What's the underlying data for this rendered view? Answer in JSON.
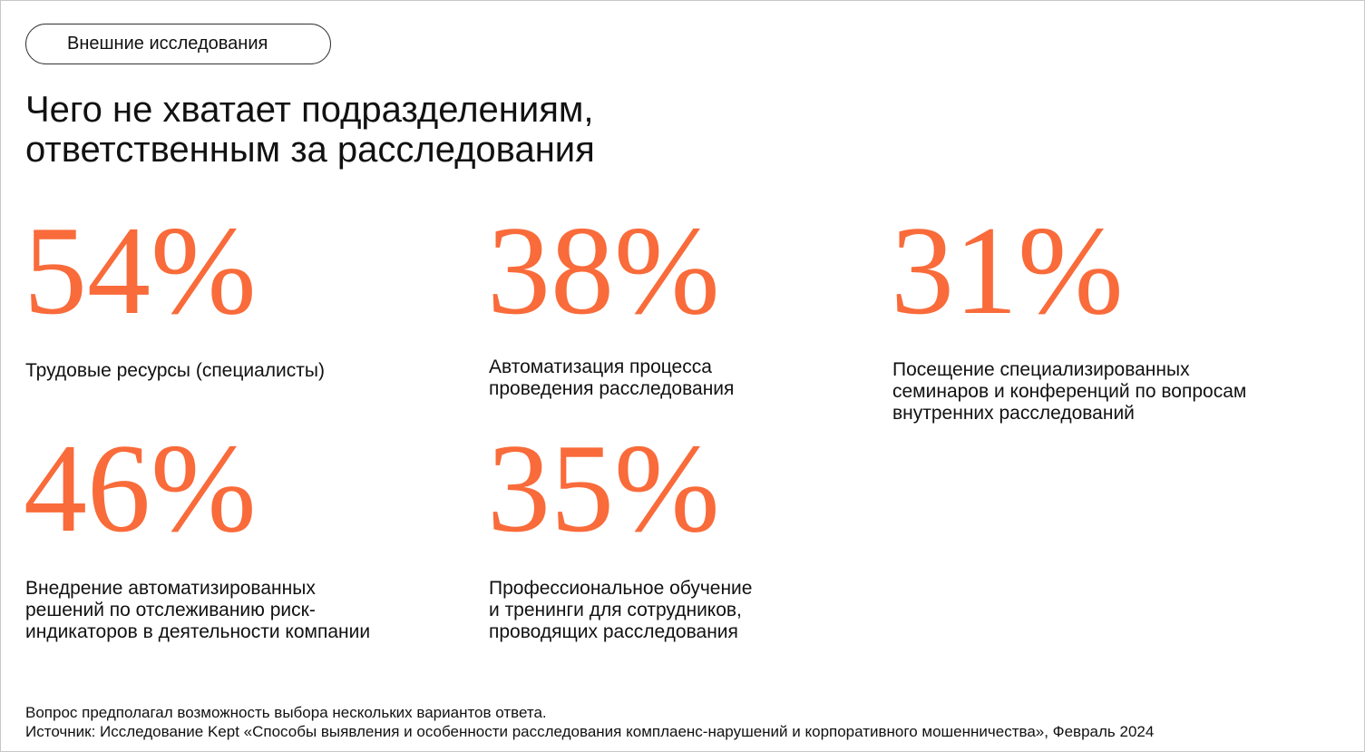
{
  "tag": "Внешние исследования",
  "title": [
    "Чего не хватает подразделениям,",
    "ответственным за расследования"
  ],
  "stats": [
    {
      "value": "54%",
      "description": [
        "Трудовые ресурсы (специалисты)"
      ]
    },
    {
      "value": "38%",
      "description": [
        "Автоматизация процесса",
        "проведения расследования"
      ]
    },
    {
      "value": "31%",
      "description": [
        "Посещение специализированных",
        "семинаров и конференций по вопросам",
        "внутренних расследований"
      ]
    },
    {
      "value": "46%",
      "description": [
        "Внедрение автоматизированных",
        "решений по отслеживанию риск-",
        "индикаторов в деятельности компании"
      ]
    },
    {
      "value": "35%",
      "description": [
        "Профессиональное обучение",
        "и тренинги для сотрудников,",
        "проводящих расследования"
      ]
    }
  ],
  "footnotes": [
    "Вопрос предполагал возможность выбора нескольких вариантов ответа.",
    "Источник: Исследование Kept «Способы выявления и особенности расследования комплаенс-нарушений и корпоративного мошенничества», Февраль 2024"
  ]
}
